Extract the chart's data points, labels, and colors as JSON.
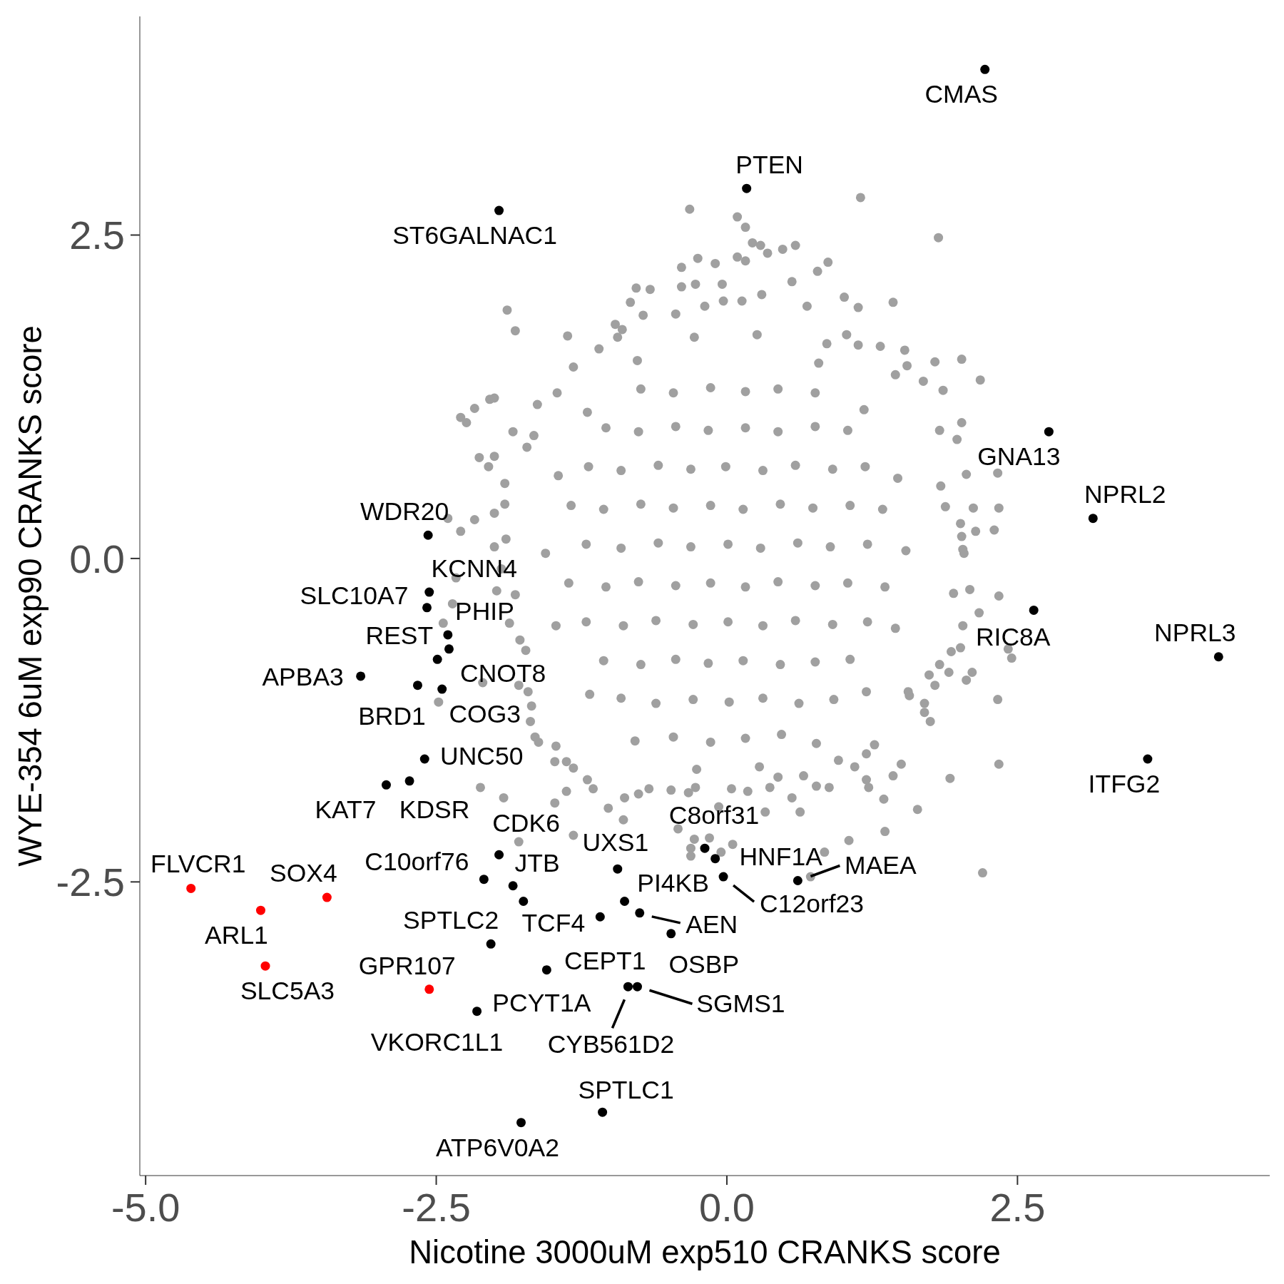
{
  "chart_data": {
    "type": "scatter",
    "marker": "circle",
    "xlabel": "Nicotine 3000uM exp510 CRANKS score",
    "ylabel": "WYE-354 6uM exp90 CRANKS score",
    "xlim": [
      -5.05,
      4.67
    ],
    "ylim": [
      -4.77,
      4.19
    ],
    "xticks": [
      {
        "value": -5,
        "label": "-5.0"
      },
      -2.5,
      {
        "value": 0,
        "label": "0.0"
      },
      2.5
    ],
    "yticks": [
      -2.5,
      {
        "value": 0,
        "label": "0.0"
      },
      2.5
    ],
    "series": [
      {
        "color": "#a0a0a0",
        "x": [
          1.15,
          -0.32,
          1.82,
          0.09,
          0.16,
          0.22,
          0.29,
          0.35,
          0.48,
          0.59,
          -0.25,
          0.09,
          0.16,
          -0.39,
          -0.1,
          0.87,
          0.78,
          0.56,
          -0.04,
          -0.78,
          -0.66,
          -1.89,
          -1.82,
          -1.37,
          -1.32,
          1.01,
          1.43,
          1.13,
          0.69,
          -0.44,
          -0.83,
          -0.72,
          1.03,
          1.79,
          2.02,
          2.18,
          1.86,
          1.69,
          1.53,
          2.02,
          1.98,
          2.33,
          2.06,
          2.34,
          2.12,
          2.14,
          2.3,
          1.88,
          1.84,
          2.02,
          2.04,
          -2.29,
          -2.24,
          -2.17,
          -2.04,
          -2.0,
          -2.13,
          -2.0,
          -2.05,
          -1.84,
          -1.66,
          -1.63,
          -1.46,
          -1.72,
          -1.91,
          -2.4,
          -2.29,
          -2.17,
          -2.0,
          -2.33,
          -0.96,
          -0.9,
          -1.1,
          -0.94,
          -0.39,
          -0.27,
          -0.19,
          -0.03,
          0.13,
          0.3,
          0.86,
          1.13,
          1.32,
          1.55,
          1.45,
          1.83,
          2.01,
          2.34,
          2.09,
          1.95,
          2.17,
          2.03,
          2.01,
          1.93,
          2.42,
          2.45,
          2.11,
          2.06,
          1.91,
          1.83,
          1.79,
          2.33,
          1.7,
          1.7,
          1.75,
          1.57,
          2.34,
          1.92,
          1.5,
          1.64,
          2.2,
          1.43,
          1.35,
          1.36,
          1.05,
          1.2,
          1.22,
          0.88,
          0.77,
          0.63,
          0.56,
          0.84,
          0.72,
          1.1,
          1.2,
          1.27,
          0.96,
          0.66,
          0.33,
          0.37,
          0.44,
          0.18,
          0.05,
          -0.07,
          0.04,
          -0.15,
          -0.28,
          -0.31,
          -0.31,
          -0.42,
          -0.05,
          -0.33,
          -0.27,
          -0.48,
          -0.67,
          -0.76,
          -0.88,
          -0.89,
          -1.02,
          -1.15,
          -1.2,
          -1.38,
          -1.48,
          -1.32,
          -1.79,
          -1.92,
          -2.12,
          -1.32,
          -1.48,
          -1.47,
          -1.62,
          -1.65,
          -1.69,
          -1.68,
          -1.71,
          -2.1,
          -1.78,
          -1.73,
          -1.87,
          -1.98,
          -2.0,
          -1.9,
          1.56,
          1.74,
          2.03,
          -2.44,
          -2.48,
          -1.91,
          -2.36,
          -1.94,
          -1.82,
          -1.79,
          -1.38,
          1.54,
          1.47,
          1.18,
          0.79,
          0.26,
          -0.28,
          -0.77,
          -1.2,
          -1.45,
          -1.56,
          -1.47,
          -1.18,
          -0.79,
          -0.26,
          0.28,
          0.77,
          1.2,
          1.45,
          -0.46,
          -0.14,
          0.16,
          0.47,
          -0.91,
          -0.61,
          -0.29,
          0.02,
          0.31,
          0.62,
          0.92,
          -1.06,
          -0.74,
          -0.44,
          -0.16,
          0.14,
          0.46,
          0.76,
          1.06,
          -1.21,
          -0.89,
          -0.61,
          -0.29,
          0.01,
          0.31,
          0.59,
          0.91,
          1.21,
          -1.36,
          -1.04,
          -0.76,
          -0.44,
          -0.14,
          0.16,
          0.44,
          0.76,
          1.04,
          1.36,
          -1.21,
          -0.91,
          -0.59,
          -0.31,
          0.01,
          0.29,
          0.61,
          0.89,
          1.21,
          -1.34,
          -1.06,
          -0.74,
          -0.46,
          -0.14,
          0.14,
          0.46,
          0.74,
          1.06,
          1.34,
          -1.19,
          -0.91,
          -0.59,
          -0.31,
          -0.01,
          0.31,
          0.59,
          0.91,
          1.19,
          -1.04,
          -0.76,
          -0.44,
          -0.16,
          0.16,
          0.44,
          0.76,
          1.04,
          -0.74,
          -0.46,
          -0.14,
          0.16,
          0.44,
          0.76
        ],
        "values": [
          2.79,
          2.7,
          2.48,
          2.64,
          2.56,
          2.44,
          2.42,
          2.36,
          2.39,
          2.42,
          2.32,
          2.33,
          2.3,
          2.25,
          2.28,
          2.29,
          2.22,
          2.14,
          2.12,
          2.09,
          2.08,
          1.92,
          1.76,
          1.72,
          1.48,
          2.02,
          1.98,
          1.94,
          1.95,
          1.89,
          1.98,
          1.88,
          1.73,
          1.52,
          1.54,
          1.38,
          1.3,
          1.37,
          1.61,
          1.05,
          0.92,
          0.66,
          0.65,
          0.39,
          0.39,
          0.21,
          0.22,
          0.4,
          0.56,
          0.17,
          0.04,
          1.09,
          1.05,
          1.16,
          1.23,
          1.24,
          0.78,
          0.79,
          0.71,
          0.98,
          0.95,
          1.19,
          1.28,
          0.86,
          0.58,
          0.31,
          0.21,
          0.3,
          0.35,
          -0.15,
          1.81,
          1.77,
          1.62,
          1.71,
          2.1,
          2.12,
          1.95,
          1.99,
          1.99,
          2.04,
          1.66,
          1.65,
          1.64,
          1.49,
          1.42,
          0.99,
          0.27,
          -0.29,
          -0.24,
          -0.27,
          -0.42,
          -0.52,
          -0.69,
          -0.72,
          -0.7,
          -0.77,
          -0.88,
          -0.94,
          -0.88,
          -0.82,
          -0.98,
          -1.09,
          -1.12,
          -1.19,
          -1.26,
          -1.06,
          -1.59,
          -1.7,
          -1.59,
          -1.94,
          -2.43,
          -1.68,
          -1.86,
          -2.11,
          -2.18,
          -1.71,
          -1.77,
          -1.77,
          -1.76,
          -1.96,
          -1.85,
          -2.27,
          -2.46,
          -1.61,
          -1.51,
          -1.44,
          -1.56,
          -1.68,
          -1.96,
          -1.77,
          -1.69,
          -1.8,
          -2.21,
          -1.92,
          -1.78,
          -2.16,
          -2.17,
          -2.24,
          -2.3,
          -2.09,
          -2.27,
          -1.81,
          -1.77,
          -1.79,
          -1.78,
          -1.82,
          -1.85,
          -2.02,
          -1.93,
          -1.78,
          -1.71,
          -1.8,
          -1.89,
          -2.14,
          -2.19,
          -1.85,
          -1.77,
          -1.62,
          -1.57,
          -1.45,
          -1.42,
          -1.38,
          -1.26,
          -1.14,
          -1.03,
          -0.96,
          -0.63,
          -0.71,
          -0.5,
          -0.25,
          0.09,
          0.15,
          -1.03,
          -0.9,
          0.07,
          -0.5,
          -1.11,
          0.42,
          -0.35,
          -0.08,
          -0.28,
          -0.98,
          -1.57,
          0.06,
          0.62,
          1.15,
          1.51,
          1.73,
          1.71,
          1.53,
          1.13,
          0.64,
          0.04,
          -0.52,
          -1.05,
          -1.41,
          -1.63,
          -1.61,
          -1.43,
          -1.03,
          -0.54,
          -1.38,
          -1.42,
          -1.39,
          -1.36,
          -1.08,
          -1.12,
          -1.09,
          -1.11,
          -1.08,
          -1.12,
          -1.09,
          -0.79,
          -0.82,
          -0.78,
          -0.81,
          -0.79,
          -0.82,
          -0.8,
          -0.78,
          -0.49,
          -0.52,
          -0.48,
          -0.51,
          -0.49,
          -0.52,
          -0.48,
          -0.51,
          -0.49,
          -0.19,
          -0.22,
          -0.18,
          -0.21,
          -0.19,
          -0.22,
          -0.18,
          -0.21,
          -0.19,
          -0.22,
          0.11,
          0.08,
          0.12,
          0.09,
          0.11,
          0.08,
          0.12,
          0.09,
          0.11,
          0.41,
          0.38,
          0.42,
          0.39,
          0.41,
          0.38,
          0.42,
          0.39,
          0.41,
          0.38,
          0.71,
          0.68,
          0.72,
          0.69,
          0.71,
          0.68,
          0.72,
          0.69,
          0.71,
          1.01,
          0.98,
          1.02,
          0.99,
          1.01,
          0.98,
          1.02,
          0.99,
          1.31,
          1.28,
          1.32,
          1.29,
          1.31,
          1.28
        ]
      },
      {
        "color": "#000000",
        "x": [
          2.22,
          0.17,
          -1.96,
          2.77,
          3.15,
          2.64,
          4.23,
          3.62,
          -2.57,
          -2.56,
          -2.58,
          -2.4,
          -2.39,
          -2.49,
          -3.15,
          -2.66,
          -2.45,
          -2.6,
          -2.93,
          -2.73,
          -1.96,
          -2.09,
          -1.84,
          -1.75,
          -2.03,
          -1.09,
          -1.55,
          -2.15,
          -0.94,
          -0.88,
          -0.75,
          -0.48,
          -0.85,
          -0.77,
          -1.07,
          -1.77,
          -0.19,
          -0.1,
          -0.03,
          0.61
        ],
        "values": [
          3.78,
          2.86,
          2.69,
          0.98,
          0.31,
          -0.4,
          -0.76,
          -1.55,
          0.18,
          -0.26,
          -0.38,
          -0.59,
          -0.7,
          -0.78,
          -0.91,
          -0.98,
          -1.01,
          -1.55,
          -1.75,
          -1.72,
          -2.29,
          -2.48,
          -2.53,
          -2.65,
          -2.98,
          -2.77,
          -3.18,
          -3.5,
          -2.4,
          -2.65,
          -2.74,
          -2.9,
          -3.31,
          -3.31,
          -4.28,
          -4.36,
          -2.24,
          -2.32,
          -2.46,
          -2.49
        ]
      },
      {
        "color": "#ff0000",
        "x": [
          -4.61,
          -3.44,
          -4.01,
          -3.97,
          -2.56
        ],
        "values": [
          -2.55,
          -2.62,
          -2.72,
          -3.15,
          -3.33
        ]
      }
    ],
    "annotations": [
      {
        "text": "CMAS",
        "x": 2.22,
        "y": 3.78
      },
      {
        "text": "PTEN",
        "x": 0.17,
        "y": 2.86
      },
      {
        "text": "ST6GALNAC1",
        "x": -1.96,
        "y": 2.69
      },
      {
        "text": "GNA13",
        "x": 2.77,
        "y": 0.98
      },
      {
        "text": "NPRL2",
        "x": 3.15,
        "y": 0.31
      },
      {
        "text": "RIC8A",
        "x": 2.64,
        "y": -0.4
      },
      {
        "text": "NPRL3",
        "x": 4.23,
        "y": -0.76
      },
      {
        "text": "ITFG2",
        "x": 3.62,
        "y": -1.55
      },
      {
        "text": "WDR20",
        "x": -2.57,
        "y": 0.18
      },
      {
        "text": "KCNN4",
        "x": -2.56,
        "y": -0.26
      },
      {
        "text": "SLC10A7",
        "x": -2.58,
        "y": -0.38
      },
      {
        "text": "REST",
        "x": -2.4,
        "y": -0.59
      },
      {
        "text": "PHIP",
        "x": -2.39,
        "y": -0.7
      },
      {
        "text": "CNOT8",
        "x": -2.49,
        "y": -0.78
      },
      {
        "text": "APBA3",
        "x": -3.15,
        "y": -0.91
      },
      {
        "text": "BRD1",
        "x": -2.66,
        "y": -0.98
      },
      {
        "text": "COG3",
        "x": -2.45,
        "y": -1.01
      },
      {
        "text": "UNC50",
        "x": -2.6,
        "y": -1.55
      },
      {
        "text": "KAT7",
        "x": -2.93,
        "y": -1.75
      },
      {
        "text": "KDSR",
        "x": -2.73,
        "y": -1.72
      },
      {
        "text": "CDK6",
        "x": -1.96,
        "y": -2.29
      },
      {
        "text": "C10orf76",
        "x": -2.09,
        "y": -2.48
      },
      {
        "text": "JTB",
        "x": -1.84,
        "y": -2.53
      },
      {
        "text": "TCF4",
        "x": -1.75,
        "y": -2.65
      },
      {
        "text": "SPTLC2",
        "x": -2.03,
        "y": -2.98
      },
      {
        "text": "CEPT1",
        "x": -1.09,
        "y": -2.77
      },
      {
        "text": "PCYT1A",
        "x": -1.55,
        "y": -3.18
      },
      {
        "text": "VKORC1L1",
        "x": -2.15,
        "y": -3.5
      },
      {
        "text": "UXS1",
        "x": -0.94,
        "y": -2.4
      },
      {
        "text": "PI4KB",
        "x": -0.88,
        "y": -2.65
      },
      {
        "text": "AEN",
        "x": -0.75,
        "y": -2.74
      },
      {
        "text": "OSBP",
        "x": -0.48,
        "y": -2.9
      },
      {
        "text": "CYB561D2",
        "x": -0.85,
        "y": -3.31
      },
      {
        "text": "SGMS1",
        "x": -0.77,
        "y": -3.31
      },
      {
        "text": "SPTLC1",
        "x": -1.07,
        "y": -4.28
      },
      {
        "text": "ATP6V0A2",
        "x": -1.77,
        "y": -4.36
      },
      {
        "text": "C8orf31",
        "x": -0.19,
        "y": -2.24
      },
      {
        "text": "HNF1A",
        "x": -0.1,
        "y": -2.32
      },
      {
        "text": "C12orf23",
        "x": -0.03,
        "y": -2.46
      },
      {
        "text": "MAEA",
        "x": 0.61,
        "y": -2.49
      },
      {
        "text": "FLVCR1",
        "x": -4.61,
        "y": -2.55
      },
      {
        "text": "SOX4",
        "x": -3.44,
        "y": -2.62
      },
      {
        "text": "ARL1",
        "x": -4.01,
        "y": -2.72
      },
      {
        "text": "SLC5A3",
        "x": -3.97,
        "y": -3.15
      },
      {
        "text": "GPR107",
        "x": -2.56,
        "y": -3.33
      }
    ]
  }
}
